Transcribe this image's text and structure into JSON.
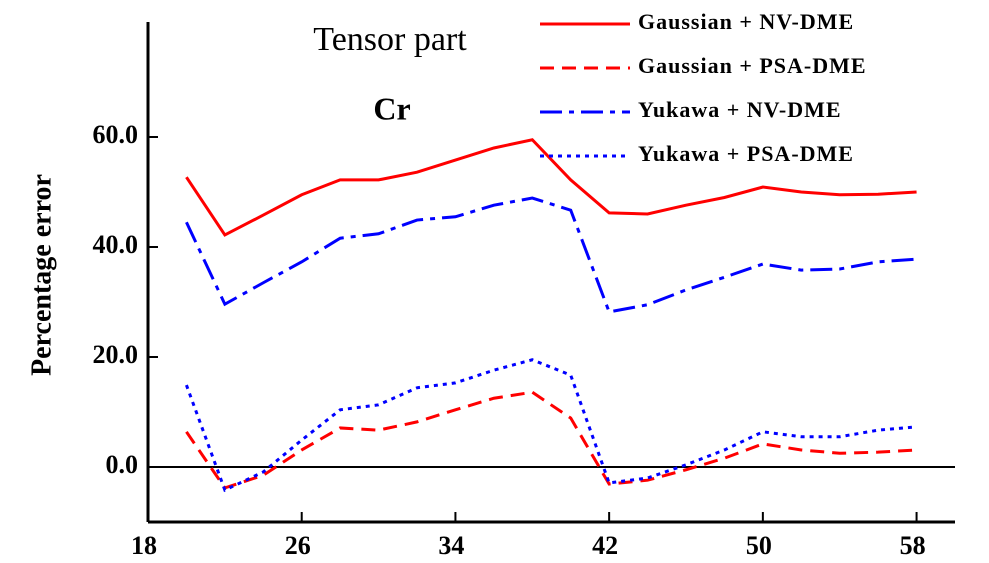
{
  "chart_data": {
    "type": "line",
    "annotations": [
      "Tensor part",
      "Cr"
    ],
    "y_label": "Percentage error",
    "x": [
      20,
      22,
      24,
      26,
      28,
      30,
      32,
      34,
      36,
      38,
      40,
      42,
      44,
      46,
      48,
      50,
      52,
      54,
      56,
      58
    ],
    "series": [
      {
        "name": "Gaussian + NV-DME",
        "color": "#ff0000",
        "dash": "solid",
        "values": [
          52.7,
          42.2,
          45.8,
          49.5,
          52.2,
          52.2,
          53.6,
          55.8,
          58.0,
          59.5,
          52.2,
          46.2,
          46.0,
          47.6,
          49.0,
          50.9,
          50.0,
          49.5,
          49.6,
          50.0
        ]
      },
      {
        "name": "Gaussian + PSA-DME",
        "color": "#ff0000",
        "dash": "dashed",
        "values": [
          6.4,
          -3.8,
          -1.5,
          3.1,
          7.1,
          6.7,
          8.2,
          10.4,
          12.5,
          13.6,
          8.9,
          -3.1,
          -2.4,
          -0.5,
          1.6,
          4.2,
          3.1,
          2.5,
          2.7,
          3.1
        ]
      },
      {
        "name": "Yukawa + NV-DME",
        "color": "#0000ff",
        "dash": "dashdot",
        "values": [
          44.5,
          29.6,
          33.5,
          37.3,
          41.6,
          42.4,
          44.9,
          45.5,
          47.6,
          48.9,
          46.7,
          28.2,
          29.5,
          32.2,
          34.5,
          36.9,
          35.8,
          36.0,
          37.3,
          37.8
        ]
      },
      {
        "name": "Yukawa + PSA-DME",
        "color": "#0000ff",
        "dash": "dotted",
        "values": [
          14.9,
          -4.2,
          -0.9,
          4.9,
          10.4,
          11.3,
          14.4,
          15.3,
          17.6,
          19.5,
          16.7,
          -2.9,
          -2.0,
          0.4,
          3.1,
          6.4,
          5.5,
          5.5,
          6.7,
          7.3
        ]
      }
    ],
    "xlim": [
      18,
      60
    ],
    "xticks": [
      18,
      26,
      34,
      42,
      50,
      58
    ],
    "ylim": [
      -10,
      80
    ],
    "yticks": [
      {
        "value": 0,
        "label": "0.0"
      },
      {
        "value": 20,
        "label": "20.0"
      },
      {
        "value": 40,
        "label": "40.0"
      },
      {
        "value": 60,
        "label": "60.0"
      }
    ],
    "zero_line": true,
    "legend": "top-right"
  }
}
